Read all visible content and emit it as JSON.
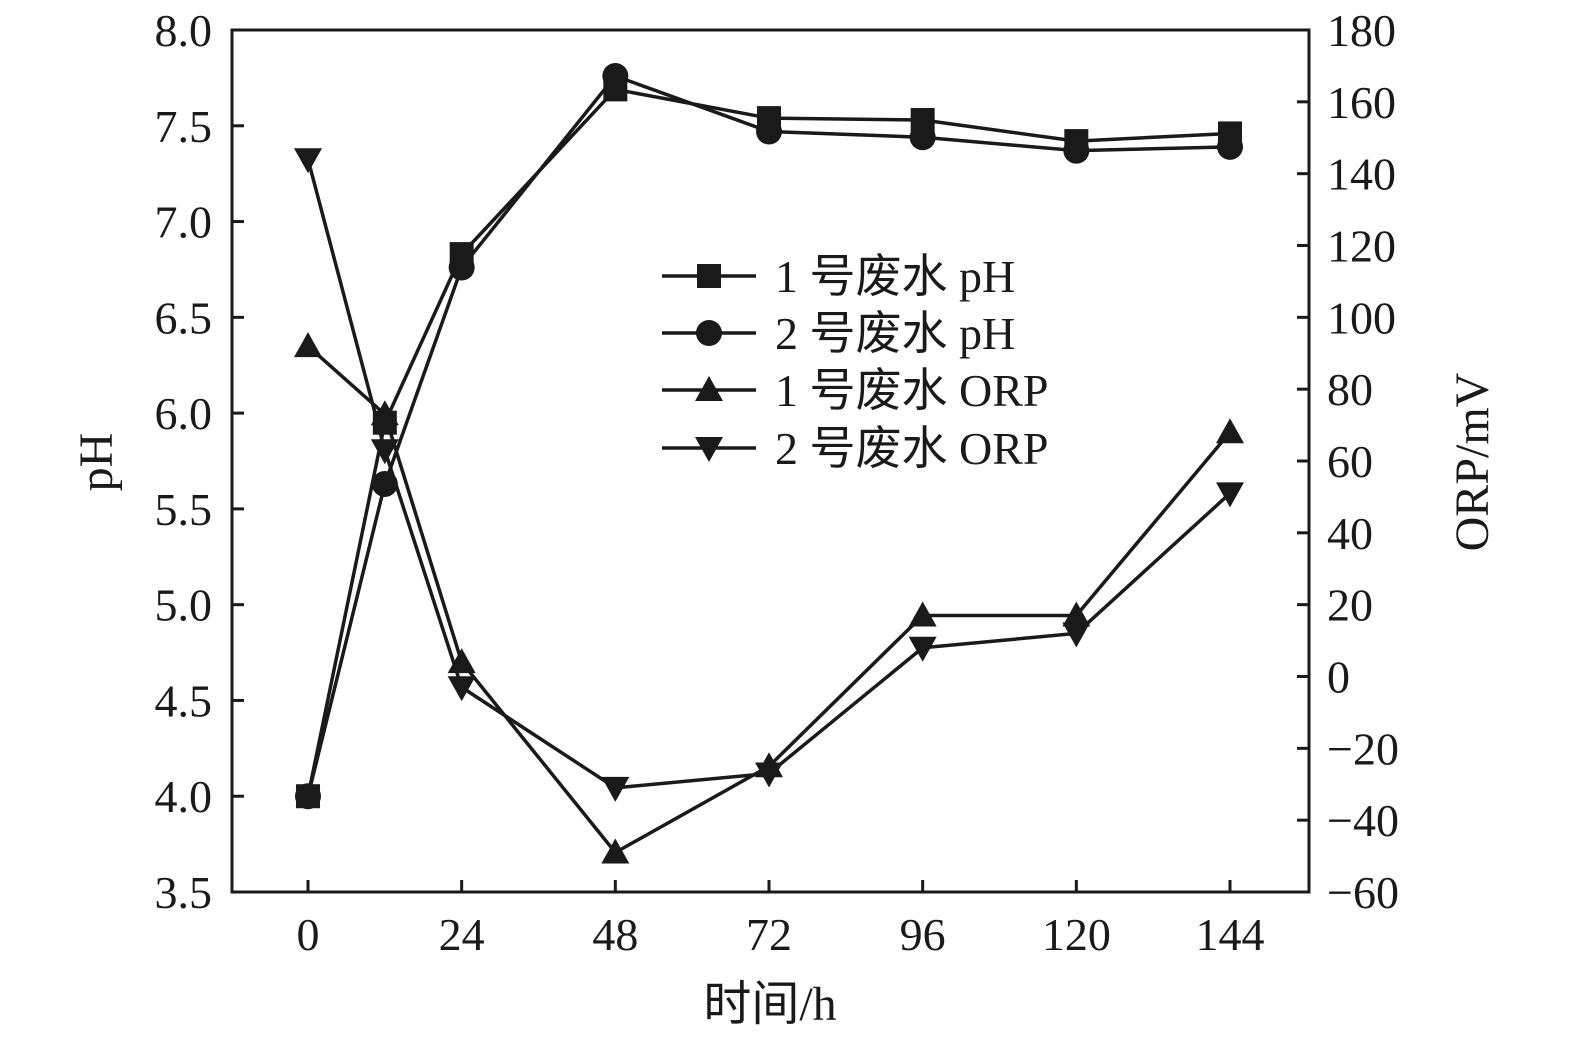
{
  "chart_data": {
    "type": "line",
    "x": [
      0,
      12,
      24,
      48,
      72,
      96,
      120,
      144
    ],
    "x_ticks": [
      "0",
      "24",
      "48",
      "72",
      "96",
      "120",
      "144"
    ],
    "xlabel": "时间/h",
    "ylabel_left": "pH",
    "ylabel_right": "ORP/mV",
    "ylim_left": [
      3.5,
      8.0
    ],
    "ylim_right": [
      -60,
      180
    ],
    "y_ticks_left": [
      "3.5",
      "4.0",
      "4.5",
      "5.0",
      "5.5",
      "6.0",
      "6.5",
      "7.0",
      "7.5",
      "8.0"
    ],
    "y_ticks_right": [
      "−60",
      "−40",
      "−20",
      "0",
      "20",
      "40",
      "60",
      "80",
      "100",
      "120",
      "140",
      "160",
      "180"
    ],
    "legend_position": "center",
    "grid": false,
    "color": "#1a1a1a",
    "series": [
      {
        "name": "1 号废水 pH",
        "axis": "left",
        "marker": "square",
        "values": [
          4.0,
          5.95,
          6.83,
          7.69,
          7.54,
          7.53,
          7.42,
          7.46
        ]
      },
      {
        "name": "2 号废水 pH",
        "axis": "left",
        "marker": "circle",
        "values": [
          4.0,
          5.63,
          6.76,
          7.76,
          7.47,
          7.44,
          7.37,
          7.39
        ]
      },
      {
        "name": "1 号废水 ORP",
        "axis": "right",
        "marker": "triangle-up",
        "values": [
          92,
          73,
          4,
          -49,
          -25,
          17,
          17,
          68
        ]
      },
      {
        "name": "2 号废水 ORP",
        "axis": "right",
        "marker": "triangle-down",
        "values": [
          144,
          63,
          -3,
          -31,
          -27,
          8,
          12,
          51
        ]
      }
    ]
  }
}
